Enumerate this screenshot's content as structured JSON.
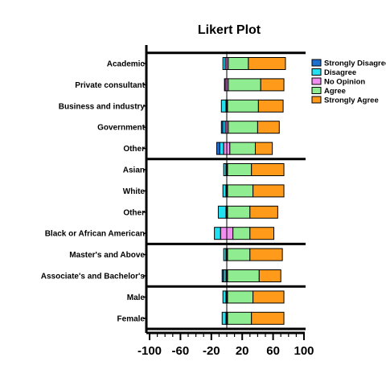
{
  "chart_data": {
    "type": "bar",
    "orientation": "horizontal",
    "stacked": "diverging",
    "title": "Likert Plot",
    "categories": [
      "Academic",
      "Private consultant",
      "Business and industry",
      "Government",
      "Other",
      "Asian",
      "White",
      "Other",
      "Black or African American",
      "Master's and Above",
      "Associate's and Bachelor's",
      "Male",
      "Female"
    ],
    "group_separators_after": [
      4,
      8,
      10
    ],
    "xlim": [
      -100,
      100
    ],
    "xticks": [
      -100,
      -60,
      -20,
      20,
      60,
      100
    ],
    "xtick_labels": [
      "-100",
      "-60",
      "-20",
      "20",
      "60",
      "100"
    ],
    "series": [
      {
        "name": "Strongly Disagree",
        "color": "#1f6fd1",
        "values": [
          0,
          0,
          0,
          2,
          4,
          0,
          0,
          0,
          0,
          0,
          2,
          0,
          0
        ]
      },
      {
        "name": "Disagree",
        "color": "#22e0f0",
        "values": [
          3,
          1,
          6,
          3,
          5,
          3,
          4,
          10,
          8,
          3,
          3,
          4,
          5
        ]
      },
      {
        "name": "No Opinion",
        "color": "#f08ef0",
        "values": [
          4,
          4,
          2,
          4,
          8,
          2,
          2,
          2,
          16,
          2,
          2,
          2,
          2
        ]
      },
      {
        "name": "Agree",
        "color": "#90ec90",
        "values": [
          26,
          42,
          40,
          38,
          33,
          31,
          33,
          29,
          22,
          29,
          41,
          33,
          31
        ]
      },
      {
        "name": "Strongly Agree",
        "color": "#ff9a1a",
        "values": [
          48,
          30,
          32,
          28,
          22,
          42,
          40,
          36,
          31,
          42,
          28,
          40,
          42
        ]
      }
    ],
    "legend": {
      "position": "top-right",
      "entries": [
        "Strongly Disagree",
        "Disagree",
        "No Opinion",
        "Agree",
        "Strongly Agree"
      ]
    },
    "grid": false
  }
}
